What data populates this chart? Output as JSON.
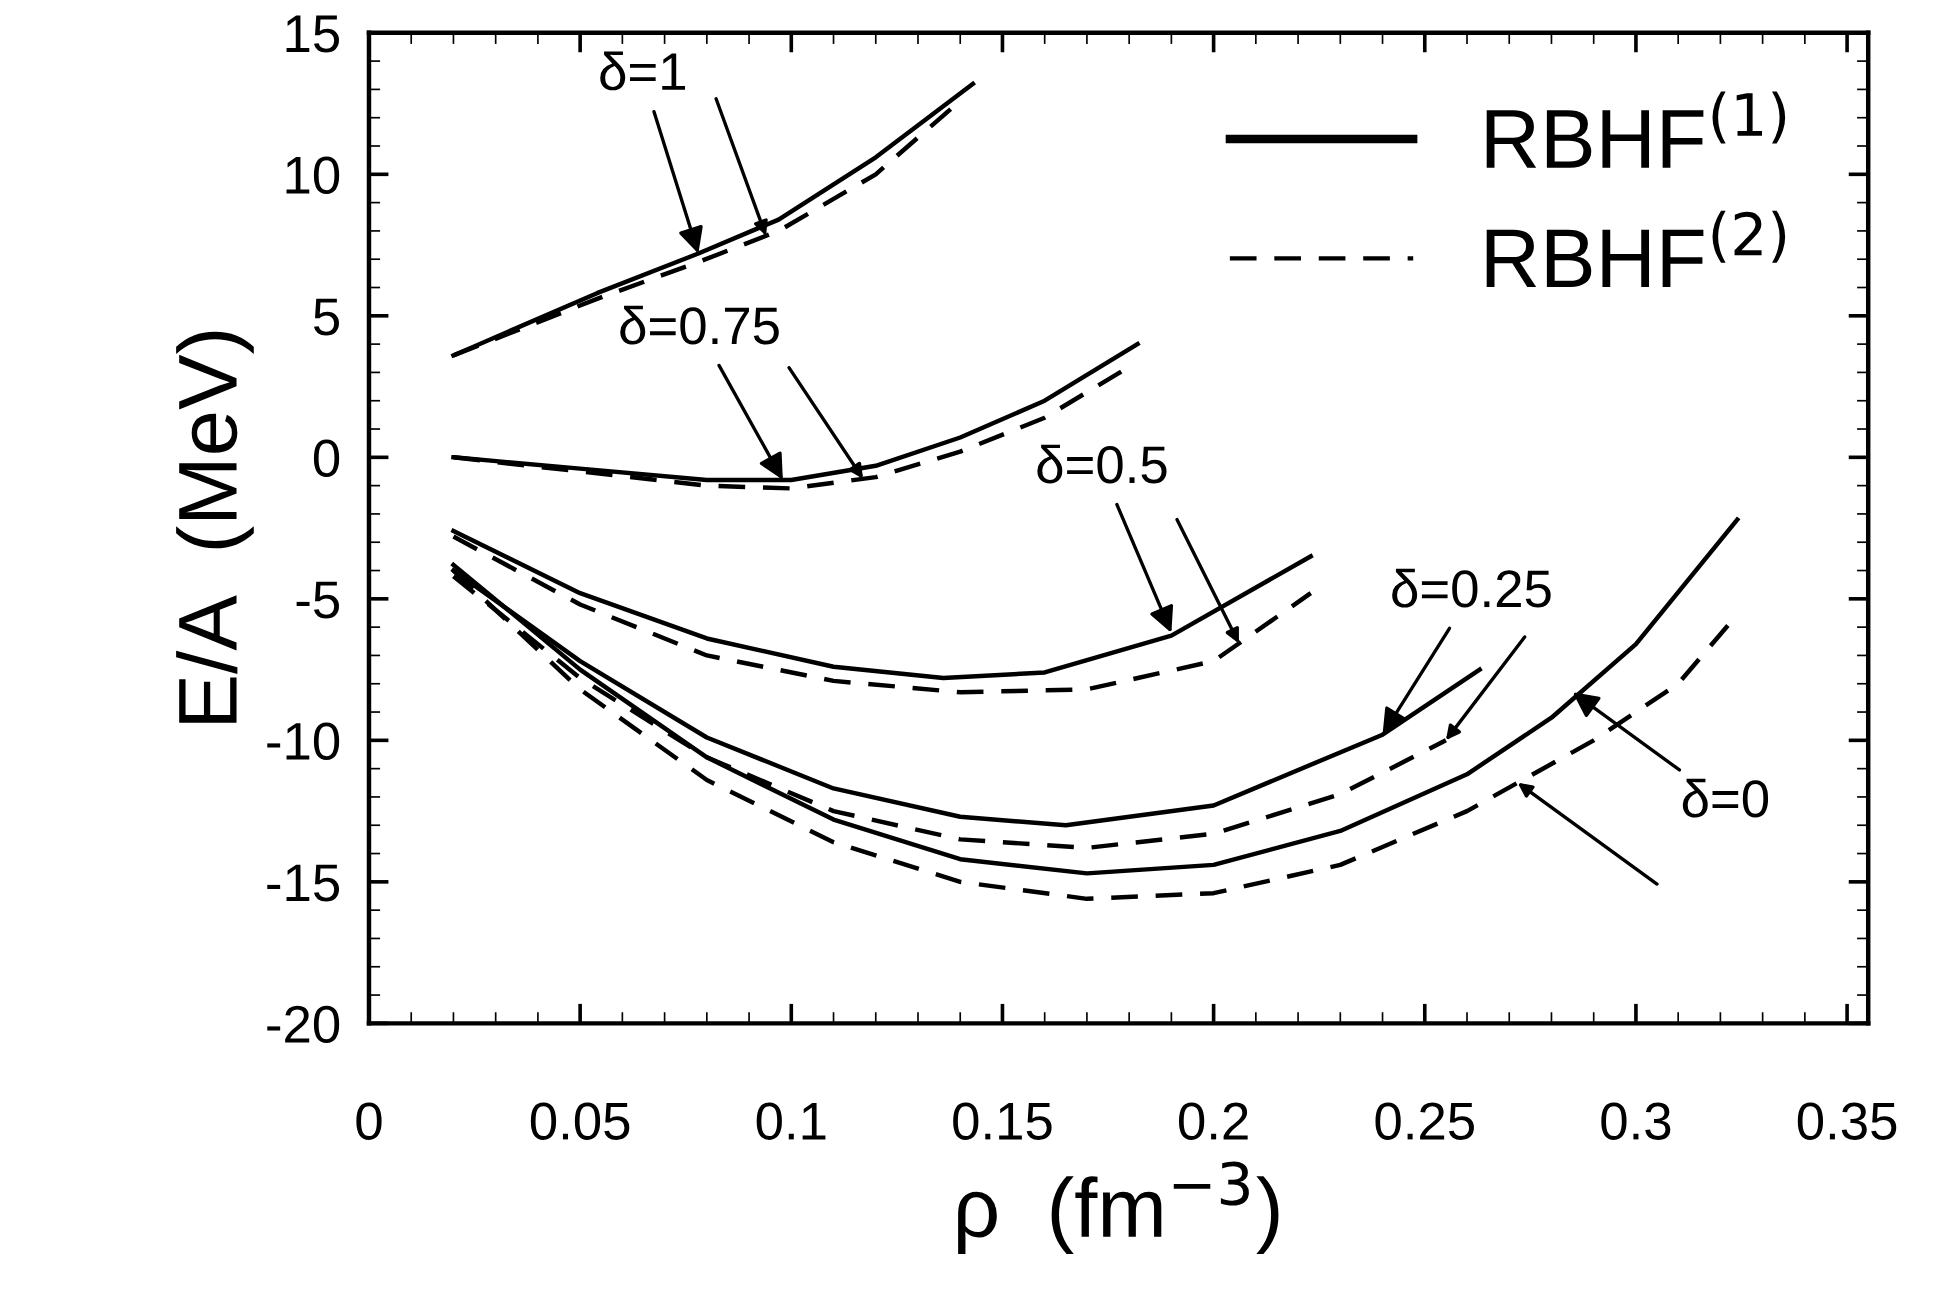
{
  "chart_data": {
    "type": "line",
    "xlabel": "ρ  (fm$^{−3}$)",
    "ylabel": "E/A  (MeV)",
    "xlim": [
      0,
      0.355
    ],
    "xticks": [
      0,
      0.05,
      0.1,
      0.15,
      0.2,
      0.25,
      0.3,
      0.35
    ],
    "ylim": [
      -20,
      15
    ],
    "yticks": [
      -20,
      -15,
      -10,
      -5,
      0,
      5,
      10,
      15
    ],
    "grid": false,
    "legend": "top right",
    "marker": "none",
    "series": [
      {
        "name": "RBHF$^{(1)}$",
        "color": "#000000",
        "line_style": "solid",
        "x": [
          0.02,
          0.054,
          0.078,
          0.097,
          0.12,
          0.143
        ],
        "values": [
          3.6,
          5.8,
          7.2,
          8.4,
          10.6,
          13.2
        ]
      },
      {
        "name": "RBHF$^{(2)}$",
        "color": "#000000",
        "line_style": "dashed",
        "x": [
          0.02,
          0.054,
          0.078,
          0.097,
          0.12,
          0.14
        ],
        "values": [
          3.6,
          5.6,
          6.9,
          8.0,
          10.0,
          12.6
        ]
      },
      {
        "color": "#000000",
        "line_style": "solid",
        "x": [
          0.02,
          0.05,
          0.08,
          0.1,
          0.12,
          0.14,
          0.16,
          0.182
        ],
        "values": [
          0.0,
          -0.4,
          -0.8,
          -0.8,
          -0.3,
          0.7,
          2.0,
          4.0
        ]
      },
      {
        "color": "#000000",
        "line_style": "dashed",
        "x": [
          0.02,
          0.05,
          0.08,
          0.1,
          0.12,
          0.14,
          0.16,
          0.18
        ],
        "values": [
          0.0,
          -0.5,
          -1.0,
          -1.1,
          -0.7,
          0.2,
          1.4,
          3.2
        ]
      },
      {
        "color": "#000000",
        "line_style": "solid",
        "x": [
          0.02,
          0.05,
          0.08,
          0.11,
          0.136,
          0.16,
          0.19,
          0.223
        ],
        "values": [
          -2.6,
          -4.8,
          -6.4,
          -7.4,
          -7.8,
          -7.6,
          -6.3,
          -3.5
        ]
      },
      {
        "color": "#000000",
        "line_style": "dashed",
        "x": [
          0.02,
          0.05,
          0.08,
          0.11,
          0.14,
          0.17,
          0.2,
          0.223
        ],
        "values": [
          -2.8,
          -5.2,
          -7.0,
          -7.9,
          -8.3,
          -8.2,
          -7.2,
          -4.8
        ]
      },
      {
        "color": "#000000",
        "line_style": "solid",
        "x": [
          0.02,
          0.05,
          0.08,
          0.11,
          0.14,
          0.165,
          0.2,
          0.24,
          0.263
        ],
        "values": [
          -4.0,
          -7.2,
          -9.9,
          -11.7,
          -12.7,
          -13.0,
          -12.3,
          -9.8,
          -7.5
        ]
      },
      {
        "color": "#000000",
        "line_style": "dashed",
        "x": [
          0.02,
          0.05,
          0.08,
          0.11,
          0.14,
          0.17,
          0.2,
          0.23,
          0.255
        ],
        "values": [
          -4.2,
          -7.8,
          -10.6,
          -12.5,
          -13.5,
          -13.8,
          -13.3,
          -11.9,
          -10.0
        ]
      },
      {
        "color": "#000000",
        "line_style": "solid",
        "x": [
          0.02,
          0.05,
          0.08,
          0.11,
          0.14,
          0.17,
          0.2,
          0.23,
          0.26,
          0.28,
          0.3,
          0.324
        ],
        "values": [
          -3.8,
          -7.5,
          -10.6,
          -12.8,
          -14.2,
          -14.7,
          -14.4,
          -13.2,
          -11.2,
          -9.2,
          -6.6,
          -2.2
        ]
      },
      {
        "color": "#000000",
        "line_style": "dashed",
        "x": [
          0.02,
          0.05,
          0.08,
          0.11,
          0.14,
          0.17,
          0.2,
          0.23,
          0.26,
          0.29,
          0.31,
          0.322
        ],
        "values": [
          -4.0,
          -8.2,
          -11.4,
          -13.6,
          -15.0,
          -15.6,
          -15.4,
          -14.4,
          -12.5,
          -10.0,
          -8.0,
          -5.9
        ]
      }
    ],
    "annotations": [
      {
        "text": "δ=1",
        "x": 0.078,
        "y": 7.2
      },
      {
        "text": "δ=0.75",
        "x": 0.098,
        "y": -0.8
      },
      {
        "text": "δ=0.5",
        "x": 0.19,
        "y": -6.2
      },
      {
        "text": "δ=0.25",
        "x": 0.24,
        "y": -9.8
      },
      {
        "text": "δ=0",
        "x": 0.285,
        "y": -8.3
      }
    ]
  }
}
